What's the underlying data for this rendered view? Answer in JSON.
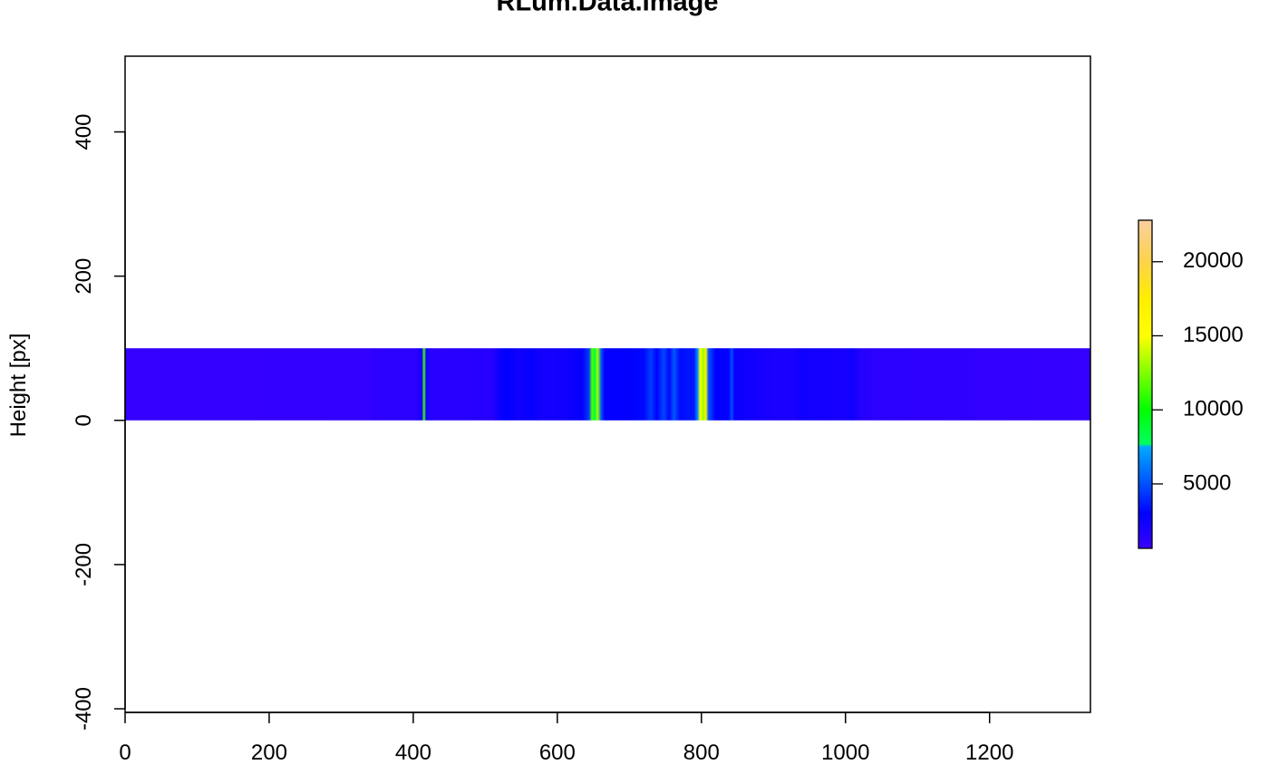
{
  "chart_data": {
    "type": "heatmap",
    "title": "RLum.Data.Image",
    "xlabel": "",
    "ylabel": "Height [px]",
    "xlim": [
      0,
      1340
    ],
    "ylim": [
      -405,
      505
    ],
    "x_ticks": [
      "0",
      "200",
      "400",
      "600",
      "800",
      "1000",
      "1200"
    ],
    "y_ticks": [
      "-400",
      "-200",
      "0",
      "200",
      "400"
    ],
    "image_extent": {
      "x": [
        0,
        1340
      ],
      "y": [
        0,
        100
      ]
    },
    "intensity_profile": [
      {
        "x": 0,
        "v": 900
      },
      {
        "x": 340,
        "v": 1000
      },
      {
        "x": 345,
        "v": 1300
      },
      {
        "x": 405,
        "v": 1300
      },
      {
        "x": 412,
        "v": 2500
      },
      {
        "x": 415,
        "v": 11500
      },
      {
        "x": 418,
        "v": 2500
      },
      {
        "x": 425,
        "v": 1400
      },
      {
        "x": 510,
        "v": 1500
      },
      {
        "x": 520,
        "v": 2600
      },
      {
        "x": 530,
        "v": 3000
      },
      {
        "x": 545,
        "v": 2400
      },
      {
        "x": 565,
        "v": 2700
      },
      {
        "x": 580,
        "v": 2200
      },
      {
        "x": 610,
        "v": 2300
      },
      {
        "x": 635,
        "v": 2800
      },
      {
        "x": 644,
        "v": 4500
      },
      {
        "x": 648,
        "v": 11500
      },
      {
        "x": 652,
        "v": 8500
      },
      {
        "x": 656,
        "v": 13000
      },
      {
        "x": 661,
        "v": 5000
      },
      {
        "x": 666,
        "v": 2900
      },
      {
        "x": 700,
        "v": 2900
      },
      {
        "x": 720,
        "v": 3200
      },
      {
        "x": 730,
        "v": 4500
      },
      {
        "x": 738,
        "v": 3000
      },
      {
        "x": 748,
        "v": 4800
      },
      {
        "x": 755,
        "v": 3100
      },
      {
        "x": 762,
        "v": 5200
      },
      {
        "x": 770,
        "v": 3300
      },
      {
        "x": 790,
        "v": 3600
      },
      {
        "x": 795,
        "v": 7000
      },
      {
        "x": 798,
        "v": 15500
      },
      {
        "x": 803,
        "v": 13000
      },
      {
        "x": 806,
        "v": 16000
      },
      {
        "x": 810,
        "v": 5000
      },
      {
        "x": 820,
        "v": 3000
      },
      {
        "x": 838,
        "v": 2900
      },
      {
        "x": 842,
        "v": 5000
      },
      {
        "x": 846,
        "v": 2600
      },
      {
        "x": 880,
        "v": 2200
      },
      {
        "x": 900,
        "v": 2000
      },
      {
        "x": 930,
        "v": 2000
      },
      {
        "x": 940,
        "v": 2500
      },
      {
        "x": 950,
        "v": 2300
      },
      {
        "x": 1000,
        "v": 2100
      },
      {
        "x": 1010,
        "v": 2500
      },
      {
        "x": 1020,
        "v": 1600
      },
      {
        "x": 1040,
        "v": 1300
      },
      {
        "x": 1100,
        "v": 1200
      },
      {
        "x": 1130,
        "v": 1200
      },
      {
        "x": 1200,
        "v": 1000
      },
      {
        "x": 1340,
        "v": 900
      }
    ],
    "colorbar": {
      "range": [
        650,
        22800
      ],
      "ticks": [
        "5000",
        "10000",
        "15000",
        "20000"
      ],
      "stops": [
        {
          "v": 650,
          "color": "#3b00ff"
        },
        {
          "v": 3000,
          "color": "#0000ff"
        },
        {
          "v": 5000,
          "color": "#0050ff"
        },
        {
          "v": 7500,
          "color": "#00aaff"
        },
        {
          "v": 7700,
          "color": "#00ff60"
        },
        {
          "v": 10000,
          "color": "#00ff00"
        },
        {
          "v": 12500,
          "color": "#80ff00"
        },
        {
          "v": 15000,
          "color": "#ffff00"
        },
        {
          "v": 17500,
          "color": "#ffee00"
        },
        {
          "v": 20000,
          "color": "#ffd24a"
        },
        {
          "v": 22800,
          "color": "#f9cfa0"
        }
      ]
    }
  }
}
